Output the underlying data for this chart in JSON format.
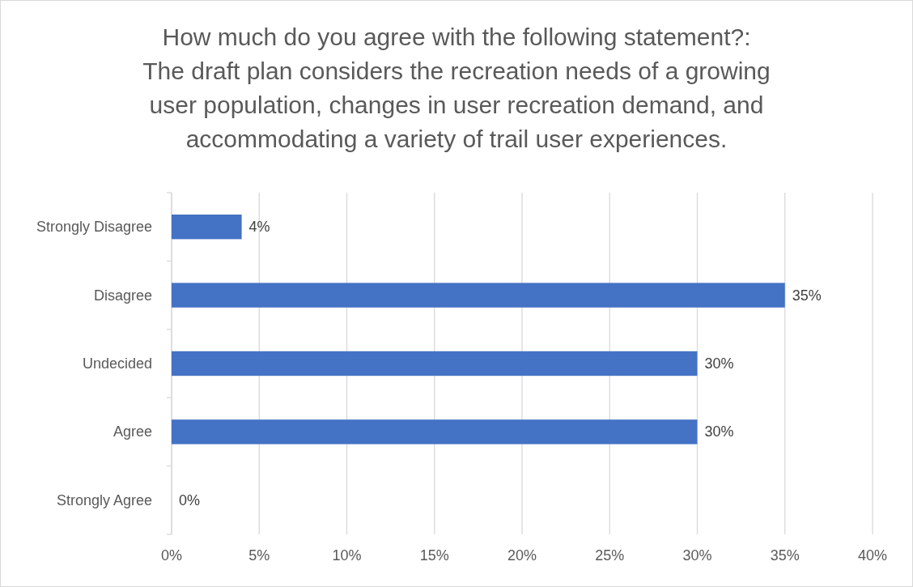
{
  "chart_data": {
    "type": "bar",
    "orientation": "horizontal",
    "title": "How much do you agree with the following statement?:\nThe draft plan considers the recreation needs of a growing user population, changes in user recreation demand, and accommodating a variety of trail user experiences.",
    "categories": [
      "Strongly Disagree",
      "Disagree",
      "Undecided",
      "Agree",
      "Strongly Agree"
    ],
    "values": [
      4,
      35,
      30,
      30,
      0
    ],
    "value_labels": [
      "4%",
      "35%",
      "30%",
      "30%",
      "0%"
    ],
    "color": "#4472c4",
    "xlim": [
      0,
      40
    ],
    "xticks": [
      {
        "value": 0,
        "label": "0%"
      },
      {
        "value": 5,
        "label": "5%"
      },
      {
        "value": 10,
        "label": "10%"
      },
      {
        "value": 15,
        "label": "15%"
      },
      {
        "value": 20,
        "label": "20%"
      },
      {
        "value": 25,
        "label": "25%"
      },
      {
        "value": 30,
        "label": "30%"
      },
      {
        "value": 35,
        "label": "35%"
      },
      {
        "value": 40,
        "label": "40%"
      }
    ],
    "grid": "x"
  }
}
